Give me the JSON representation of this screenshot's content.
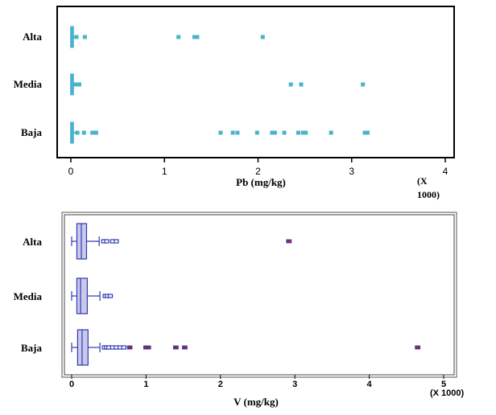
{
  "chart_data": [
    {
      "type": "box",
      "xlabel": "Pb (mg/kg)",
      "x_multiplier_label": [
        "(X",
        "1000)"
      ],
      "xlim": [
        -0.1,
        4
      ],
      "xticks": [
        0,
        1,
        2,
        3,
        4
      ],
      "xtick_labels": [
        "0",
        "1",
        "2",
        "3",
        "4"
      ],
      "categories": [
        "Alta",
        "Media",
        "Baja"
      ],
      "color": "#4ab3cc",
      "series": [
        {
          "category": "Alta",
          "box": {
            "whisker_low": 0.0,
            "q1": 0.005,
            "median": 0.01,
            "q3": 0.02,
            "whisker_high": 0.04
          },
          "outliers": [
            0.06,
            0.15,
            1.15,
            1.32,
            1.35,
            2.05
          ]
        },
        {
          "category": "Media",
          "box": {
            "whisker_low": 0.0,
            "q1": 0.005,
            "median": 0.01,
            "q3": 0.02,
            "whisker_high": 0.04
          },
          "outliers": [
            0.05,
            0.09,
            2.35,
            2.46,
            3.12
          ]
        },
        {
          "category": "Baja",
          "box": {
            "whisker_low": 0.0,
            "q1": 0.005,
            "median": 0.01,
            "q3": 0.02,
            "whisker_high": 0.05
          },
          "outliers": [
            0.07,
            0.14,
            0.23,
            0.27,
            1.6,
            1.73,
            1.78,
            1.99,
            2.15,
            2.18,
            2.28,
            2.43,
            2.48,
            2.51,
            2.78,
            3.14,
            3.17
          ]
        }
      ]
    },
    {
      "type": "box",
      "xlabel": "V (mg/kg)",
      "x_multiplier_label": [
        "(X 1000)"
      ],
      "xlim": [
        -0.1,
        5
      ],
      "xticks": [
        0,
        1,
        2,
        3,
        4,
        5
      ],
      "xtick_labels": [
        "0",
        "1",
        "2",
        "3",
        "4",
        "5"
      ],
      "categories": [
        "Alta",
        "Media",
        "Baja"
      ],
      "box_fill": "#c9c9ec",
      "box_stroke": "#2e3bb0",
      "outlier_far_color": "#8a2a56",
      "series": [
        {
          "category": "Alta",
          "box": {
            "whisker_low": 0.0,
            "q1": 0.07,
            "median": 0.13,
            "q3": 0.2,
            "whisker_high": 0.37
          },
          "outliers": [
            0.43,
            0.47,
            0.55,
            0.6
          ],
          "far_outliers": [
            2.92
          ]
        },
        {
          "category": "Media",
          "box": {
            "whisker_low": 0.0,
            "q1": 0.07,
            "median": 0.12,
            "q3": 0.21,
            "whisker_high": 0.38
          },
          "outliers": [
            0.45,
            0.48,
            0.52
          ],
          "far_outliers": []
        },
        {
          "category": "Baja",
          "box": {
            "whisker_low": 0.0,
            "q1": 0.08,
            "median": 0.14,
            "q3": 0.22,
            "whisker_high": 0.38
          },
          "outliers": [
            0.44,
            0.47,
            0.5,
            0.55,
            0.6,
            0.65,
            0.7
          ],
          "far_outliers": [
            0.78,
            1.0,
            1.03,
            1.4,
            1.52,
            4.65
          ]
        }
      ]
    }
  ]
}
